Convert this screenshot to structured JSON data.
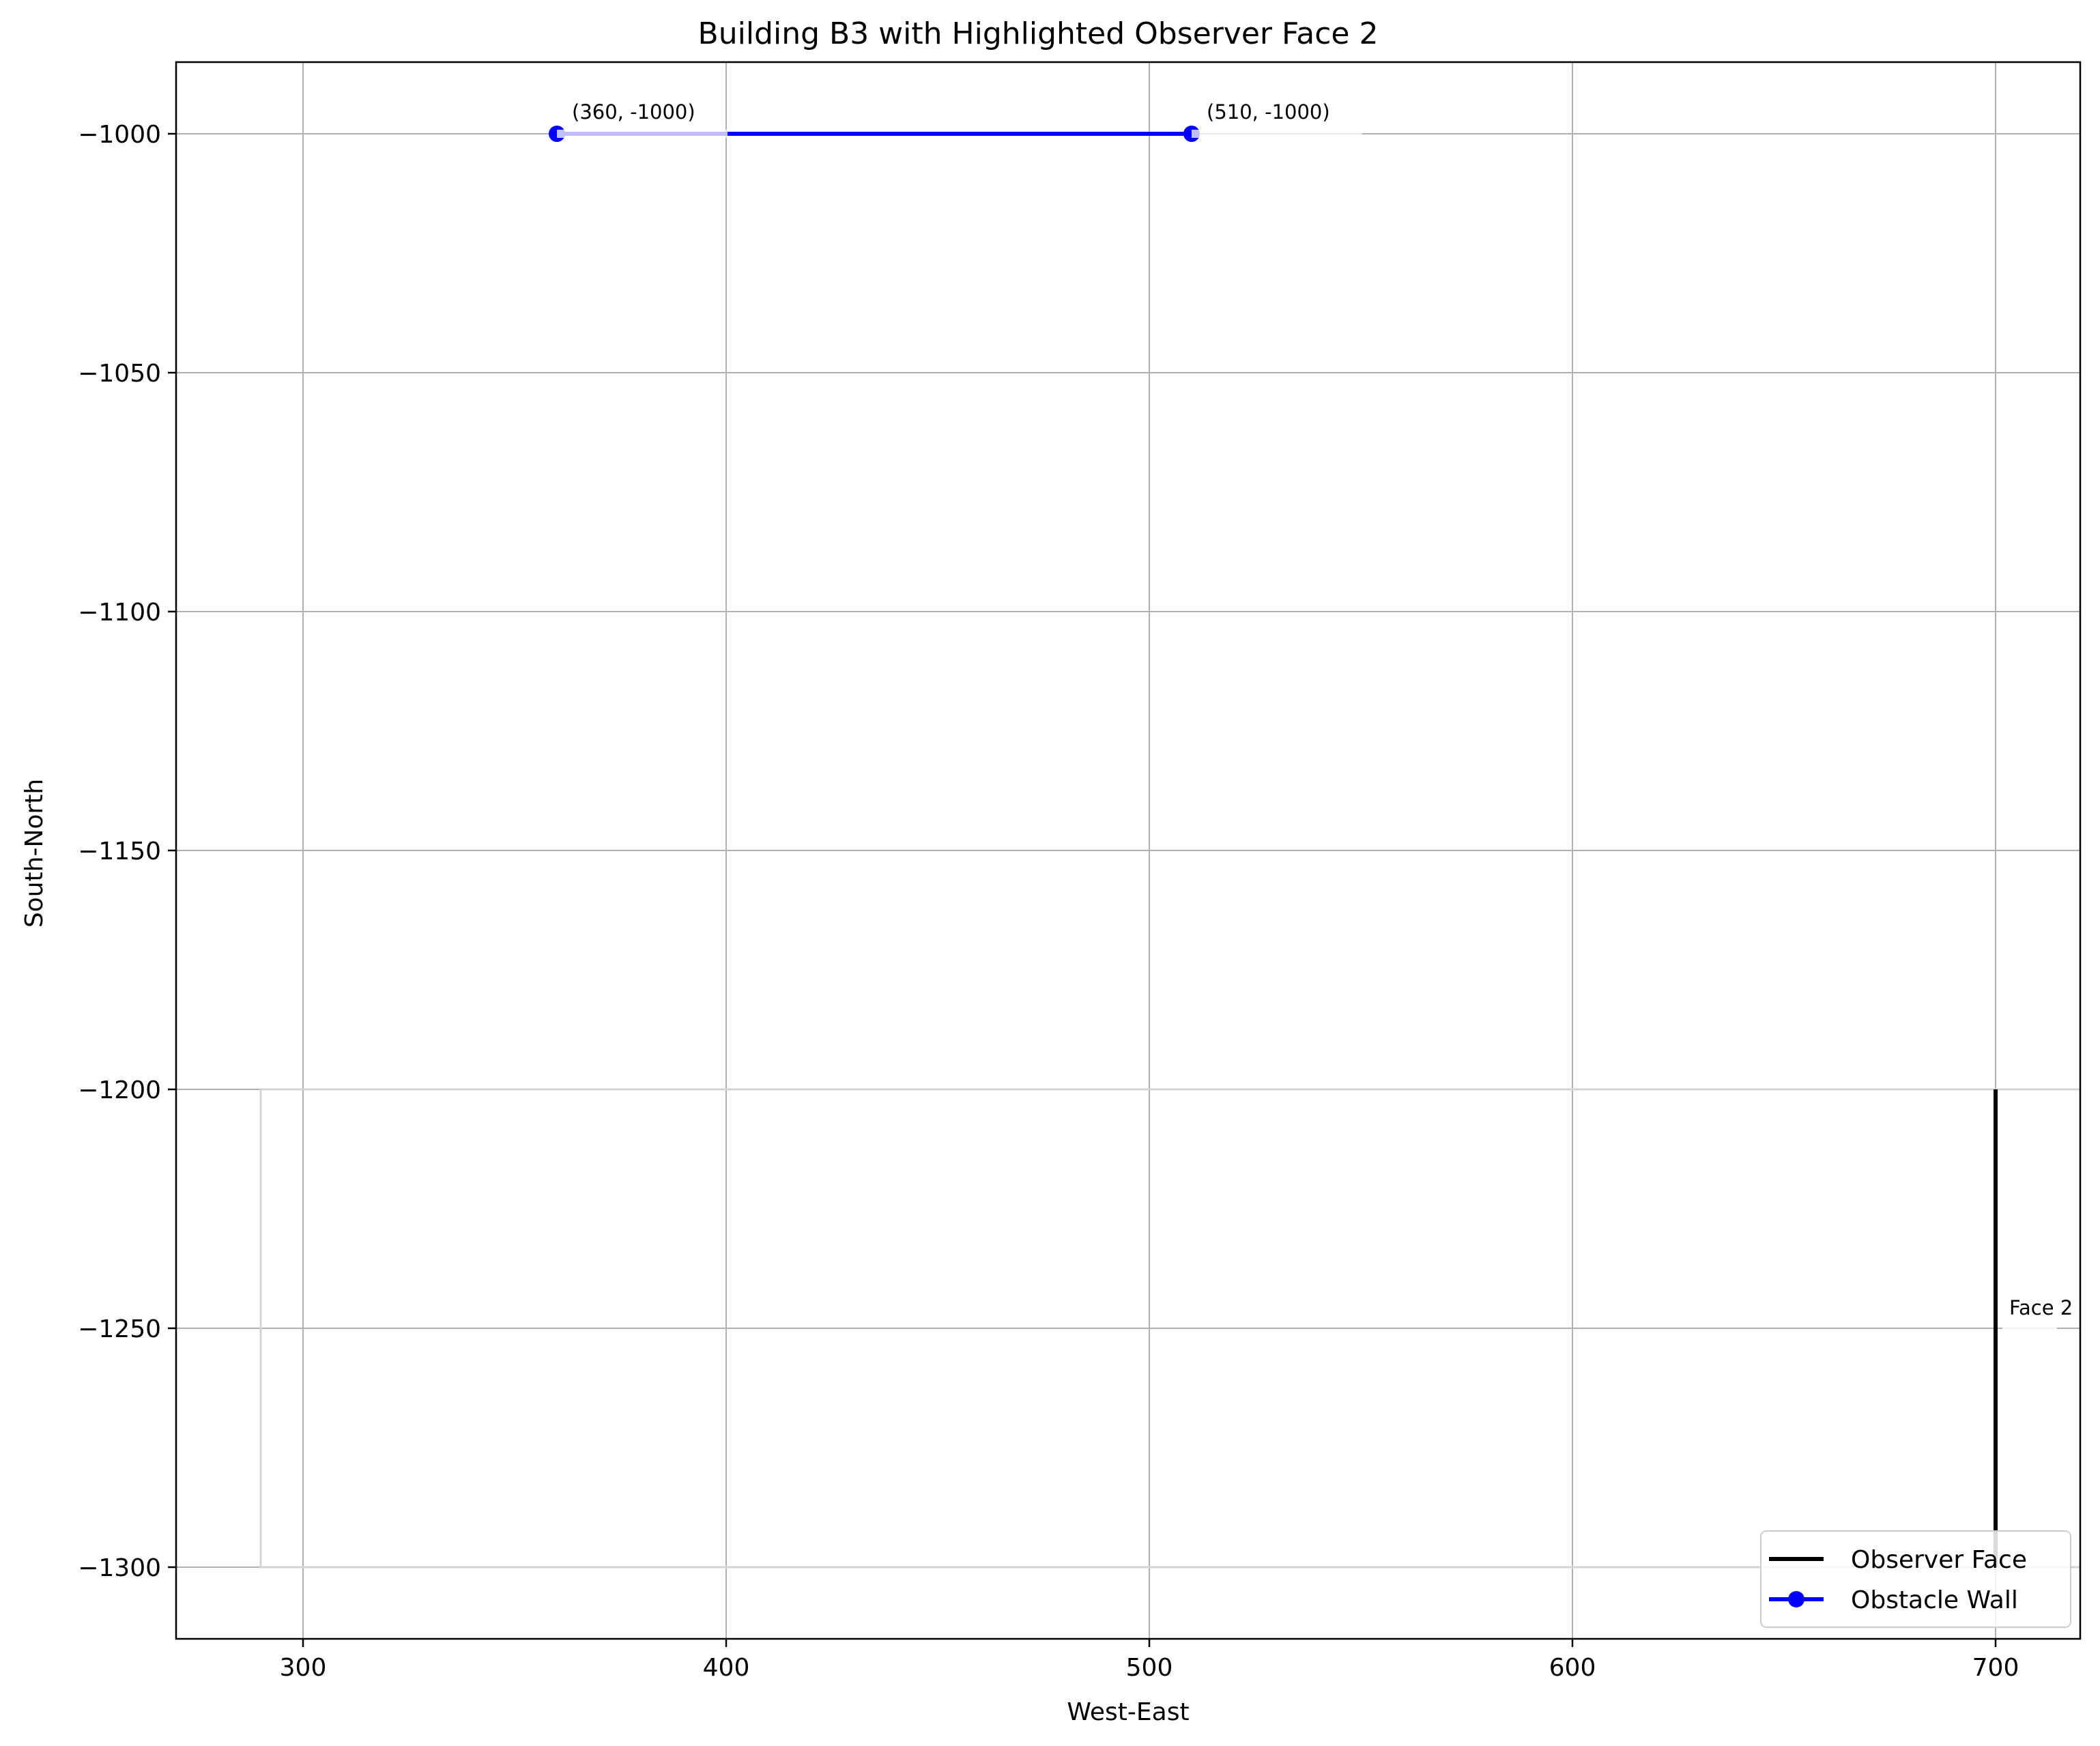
{
  "chart_data": {
    "type": "line",
    "title": "Building B3 with Highlighted Observer Face 2",
    "xlabel": "West-East",
    "ylabel": "South-North",
    "xlim": [
      270,
      720
    ],
    "ylim": [
      -1315,
      -985
    ],
    "xticks": [
      300,
      400,
      500,
      600,
      700
    ],
    "xtick_labels": [
      "300",
      "400",
      "500",
      "600",
      "700"
    ],
    "yticks": [
      -1000,
      -1050,
      -1100,
      -1150,
      -1200,
      -1250,
      -1300
    ],
    "ytick_labels": [
      "−1000",
      "−1050",
      "−1100",
      "−1150",
      "−1200",
      "−1250",
      "−1300"
    ],
    "grid": true,
    "building_outline": {
      "color": "#d3d3d3",
      "points": [
        [
          720,
          -1200
        ],
        [
          290,
          -1200
        ],
        [
          290,
          -1300
        ],
        [
          720,
          -1300
        ]
      ]
    },
    "series": [
      {
        "name": "Observer Face",
        "color": "#000000",
        "marker": "none",
        "points": [
          [
            700,
            -1200
          ],
          [
            700,
            -1300
          ]
        ]
      },
      {
        "name": "Obstacle Wall",
        "color": "#0000ff",
        "marker": "circle",
        "points": [
          [
            360,
            -1000
          ],
          [
            510,
            -1000
          ]
        ]
      }
    ],
    "annotations": [
      {
        "text": "(360, -1000)",
        "x": 360,
        "y": -1000
      },
      {
        "text": "(510, -1000)",
        "x": 510,
        "y": -1000
      },
      {
        "text": "Face 2",
        "x": 700,
        "y": -1250
      }
    ],
    "legend": {
      "position": "lower-right"
    }
  }
}
